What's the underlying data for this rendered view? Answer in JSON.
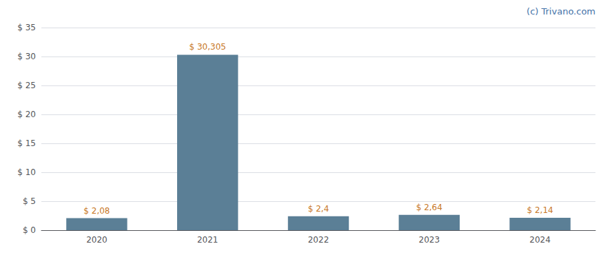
{
  "chart_data": {
    "type": "bar",
    "annotation": "(c) Trivano.com",
    "categories": [
      "2020",
      "2021",
      "2022",
      "2023",
      "2024"
    ],
    "values": [
      2.08,
      30.305,
      2.4,
      2.64,
      2.14
    ],
    "value_labels": [
      "$ 2,08",
      "$ 30,305",
      "$ 2,4",
      "$ 2,64",
      "$ 2,14"
    ],
    "data_labels": true,
    "color": "#5b7f96",
    "ylim": [
      0,
      35
    ],
    "yticks": [
      {
        "value": 0,
        "label": "$ 0"
      },
      {
        "value": 5,
        "label": "$ 5"
      },
      {
        "value": 10,
        "label": "$ 10"
      },
      {
        "value": 15,
        "label": "$ 15"
      },
      {
        "value": 20,
        "label": "$ 20"
      },
      {
        "value": 25,
        "label": "$ 25"
      },
      {
        "value": 30,
        "label": "$ 30"
      },
      {
        "value": 35,
        "label": "$ 35"
      }
    ],
    "grid": true
  }
}
